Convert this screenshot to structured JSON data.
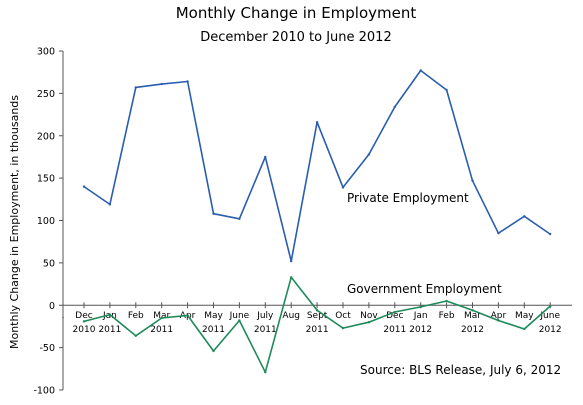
{
  "chart_data": {
    "type": "line",
    "title": "Monthly Change in Employment",
    "subtitle": "December 2010 to June 2012",
    "ylabel": "Monthly Change in Employment, in thousands",
    "xlabel": "",
    "ylim": [
      -100,
      300
    ],
    "yticks": [
      -100,
      -50,
      0,
      50,
      100,
      150,
      200,
      250,
      300
    ],
    "grid": false,
    "x_axis_leading_mark": ".",
    "categories": [
      "Dec",
      "Jan",
      "Feb",
      "Mar",
      "Apr",
      "May",
      "June",
      "July",
      "Aug",
      "Sept",
      "Oct",
      "Nov",
      "Dec",
      "Jan",
      "Feb",
      "Mar",
      "Apr",
      "May",
      "June"
    ],
    "category_year_labels": [
      "2010",
      "2011",
      "",
      "2011",
      "",
      "2011",
      "",
      "2011",
      "",
      "2011",
      "",
      "",
      "2011",
      "2012",
      "",
      "2012",
      "",
      "",
      "2012"
    ],
    "series": [
      {
        "name": "Private Employment",
        "color": "#2a5db0",
        "values": [
          140,
          119,
          257,
          261,
          264,
          108,
          102,
          175,
          52,
          216,
          139,
          178,
          234,
          277,
          254,
          147,
          85,
          105,
          84
        ]
      },
      {
        "name": "Government Employment",
        "color": "#1e8a5a",
        "values": [
          -19,
          -11,
          -36,
          -15,
          -12,
          -54,
          -18,
          -79,
          33,
          -6,
          -27,
          -20,
          -8,
          -2,
          5,
          -6,
          -18,
          -28,
          -1
        ]
      }
    ],
    "annotations": [
      "Source:  BLS Release, July 6, 2012"
    ]
  }
}
